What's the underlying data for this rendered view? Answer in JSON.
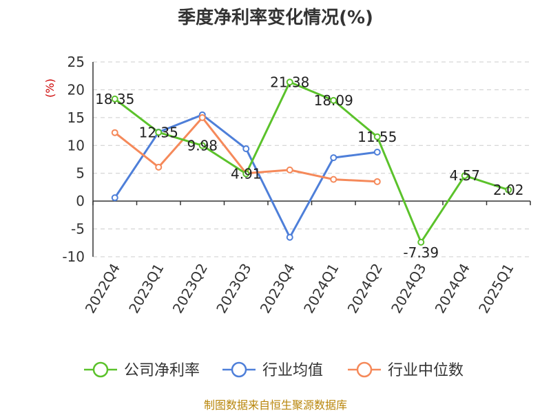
{
  "chart_data": {
    "type": "line",
    "title": "季度净利率变化情况(%)",
    "ylabel": "(%)",
    "xlabel": "",
    "ylim": [
      -10,
      25
    ],
    "yticks": [
      25,
      20,
      15,
      10,
      5,
      0,
      -5,
      -10
    ],
    "grid": true,
    "legend_position": "bottom",
    "categories": [
      "2022Q4",
      "2023Q1",
      "2023Q2",
      "2023Q3",
      "2023Q4",
      "2024Q1",
      "2024Q2",
      "2024Q3",
      "2024Q4",
      "2025Q1"
    ],
    "series": [
      {
        "name": "公司净利率",
        "color": "#5bc22b",
        "values": [
          18.35,
          12.35,
          9.98,
          4.91,
          21.38,
          18.09,
          11.55,
          -7.39,
          4.57,
          2.02
        ],
        "labels": [
          "18.35",
          "12.35",
          "9.98",
          "4.91",
          "21.38",
          "18.09",
          "11.55",
          "-7.39",
          "4.57",
          "2.02"
        ]
      },
      {
        "name": "行业均值",
        "color": "#4e7fd9",
        "values": [
          0.6,
          12.4,
          15.5,
          9.4,
          -6.5,
          7.8,
          8.8,
          null,
          null,
          null
        ]
      },
      {
        "name": "行业中位数",
        "color": "#f5895a",
        "values": [
          12.3,
          6.1,
          15.0,
          5.0,
          5.6,
          3.9,
          3.5,
          null,
          null,
          null
        ]
      }
    ]
  },
  "source": "制图数据来自恒生聚源数据库"
}
